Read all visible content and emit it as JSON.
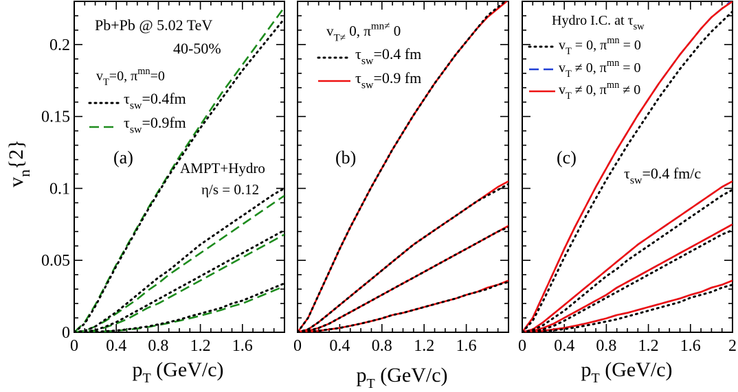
{
  "figure": {
    "ylabel_main": "v",
    "ylabel_sub": "n",
    "ylabel_tail": "{2}",
    "xlabel_main": "p",
    "xlabel_sub": "T",
    "xlabel_tail": " (GeV/c)"
  },
  "colors": {
    "black_dotted": "#000000",
    "green_dashed": "#1e8c1e",
    "blue_dashed": "#1f3fd6",
    "red_solid": "#ee1111"
  },
  "chart_data": [
    {
      "type": "line",
      "panel": "(a)",
      "xlim": [
        0,
        2
      ],
      "ylim": [
        0,
        0.23
      ],
      "x_ticks": [
        "0",
        "0.4",
        "0.8",
        "1.2",
        "1.6"
      ],
      "y_ticks": [
        "0",
        "0.05",
        "0.1",
        "0.15",
        "0.2"
      ],
      "annotations": {
        "system": "Pb+Pb @ 5.02 TeV",
        "centrality": "40-50%",
        "condition": "v_T=0, π^mn=0",
        "model": "AMPT+Hydro",
        "viscosity": "η/s = 0.12"
      },
      "legend": [
        {
          "label": "τ_sw=0.4fm",
          "style": "dotted",
          "color": "#000000"
        },
        {
          "label": "τ_sw=0.9fm",
          "style": "dashed",
          "color": "#1e8c1e"
        }
      ],
      "x": [
        0,
        0.1,
        0.2,
        0.3,
        0.4,
        0.5,
        0.6,
        0.7,
        0.8,
        0.9,
        1.0,
        1.1,
        1.2,
        1.3,
        1.4,
        1.5,
        1.6,
        1.7,
        1.8,
        1.9,
        2.0
      ],
      "series": [
        {
          "name": "τ_sw=0.4fm",
          "harmonic": "v2",
          "style": "dotted",
          "values": [
            0,
            0.006,
            0.018,
            0.032,
            0.046,
            0.059,
            0.072,
            0.085,
            0.097,
            0.109,
            0.12,
            0.131,
            0.142,
            0.152,
            0.162,
            0.172,
            0.182,
            0.191,
            0.2,
            0.209,
            0.218
          ]
        },
        {
          "name": "τ_sw=0.9fm",
          "harmonic": "v2",
          "style": "dashed",
          "values": [
            0,
            0.007,
            0.019,
            0.033,
            0.047,
            0.06,
            0.073,
            0.086,
            0.098,
            0.11,
            0.122,
            0.133,
            0.144,
            0.155,
            0.166,
            0.176,
            0.186,
            0.196,
            0.206,
            0.216,
            0.226
          ]
        },
        {
          "name": "τ_sw=0.4fm",
          "harmonic": "v3",
          "style": "dotted",
          "values": [
            0,
            0.001,
            0.004,
            0.009,
            0.014,
            0.02,
            0.026,
            0.032,
            0.038,
            0.043,
            0.049,
            0.055,
            0.061,
            0.066,
            0.071,
            0.076,
            0.081,
            0.086,
            0.091,
            0.096,
            0.1
          ]
        },
        {
          "name": "τ_sw=0.9fm",
          "harmonic": "v3",
          "style": "dashed",
          "values": [
            0,
            0.001,
            0.004,
            0.008,
            0.013,
            0.018,
            0.023,
            0.029,
            0.034,
            0.04,
            0.045,
            0.05,
            0.055,
            0.06,
            0.065,
            0.07,
            0.075,
            0.08,
            0.085,
            0.09,
            0.095
          ]
        },
        {
          "name": "τ_sw=0.4fm",
          "harmonic": "v4",
          "style": "dotted",
          "values": [
            0,
            0.0003,
            0.0015,
            0.004,
            0.007,
            0.011,
            0.015,
            0.019,
            0.023,
            0.027,
            0.031,
            0.035,
            0.039,
            0.043,
            0.047,
            0.051,
            0.055,
            0.059,
            0.063,
            0.067,
            0.071
          ]
        },
        {
          "name": "τ_sw=0.9fm",
          "harmonic": "v4",
          "style": "dashed",
          "values": [
            0,
            0.0003,
            0.0013,
            0.0035,
            0.006,
            0.009,
            0.013,
            0.017,
            0.02,
            0.024,
            0.028,
            0.032,
            0.036,
            0.04,
            0.044,
            0.048,
            0.052,
            0.056,
            0.06,
            0.064,
            0.068
          ]
        },
        {
          "name": "τ_sw=0.4fm",
          "harmonic": "v5",
          "style": "dotted",
          "values": [
            0,
            0.0001,
            0.0003,
            0.0007,
            0.0012,
            0.002,
            0.003,
            0.004,
            0.0055,
            0.007,
            0.0088,
            0.011,
            0.013,
            0.015,
            0.017,
            0.02,
            0.022,
            0.025,
            0.028,
            0.031,
            0.034
          ]
        },
        {
          "name": "τ_sw=0.9fm",
          "harmonic": "v5",
          "style": "dashed",
          "values": [
            0,
            0.0001,
            0.0003,
            0.0006,
            0.001,
            0.0017,
            0.0026,
            0.0036,
            0.005,
            0.0064,
            0.008,
            0.0097,
            0.0115,
            0.0135,
            0.0155,
            0.018,
            0.02,
            0.023,
            0.026,
            0.029,
            0.032
          ]
        }
      ]
    },
    {
      "type": "line",
      "panel": "(b)",
      "xlim": [
        0,
        2
      ],
      "ylim": [
        0,
        0.23
      ],
      "x_ticks": [
        "0",
        "0.4",
        "0.8",
        "1.2",
        "1.6"
      ],
      "annotations": {
        "condition": "v_T≠ 0, π^mn≠ 0"
      },
      "legend": [
        {
          "label": "τ_sw=0.4 fm",
          "style": "dotted",
          "color": "#000000"
        },
        {
          "label": "τ_sw=0.9 fm",
          "style": "solid",
          "color": "#ee1111"
        }
      ],
      "x": [
        0,
        0.1,
        0.2,
        0.3,
        0.4,
        0.5,
        0.6,
        0.7,
        0.8,
        0.9,
        1.0,
        1.1,
        1.2,
        1.3,
        1.4,
        1.5,
        1.6,
        1.7,
        1.8,
        1.9,
        2.0
      ],
      "series": [
        {
          "name": "τ_sw=0.4 fm",
          "harmonic": "v2",
          "style": "dotted",
          "values": [
            0,
            0.01,
            0.026,
            0.042,
            0.058,
            0.073,
            0.087,
            0.101,
            0.114,
            0.127,
            0.139,
            0.151,
            0.162,
            0.173,
            0.183,
            0.193,
            0.202,
            0.211,
            0.22,
            0.226,
            0.232
          ]
        },
        {
          "name": "τ_sw=0.9 fm",
          "harmonic": "v2",
          "style": "solid",
          "values": [
            0,
            0.01,
            0.026,
            0.042,
            0.058,
            0.073,
            0.087,
            0.101,
            0.114,
            0.127,
            0.139,
            0.151,
            0.162,
            0.173,
            0.183,
            0.193,
            0.202,
            0.211,
            0.219,
            0.225,
            0.231
          ]
        },
        {
          "name": "τ_sw=0.4 fm",
          "harmonic": "v3",
          "style": "dotted",
          "values": [
            0,
            0.002,
            0.007,
            0.013,
            0.019,
            0.025,
            0.031,
            0.037,
            0.043,
            0.049,
            0.055,
            0.061,
            0.066,
            0.071,
            0.076,
            0.081,
            0.086,
            0.091,
            0.095,
            0.099,
            0.103
          ]
        },
        {
          "name": "τ_sw=0.9 fm",
          "harmonic": "v3",
          "style": "solid",
          "values": [
            0,
            0.002,
            0.007,
            0.013,
            0.019,
            0.025,
            0.031,
            0.037,
            0.043,
            0.049,
            0.055,
            0.061,
            0.066,
            0.071,
            0.076,
            0.081,
            0.086,
            0.091,
            0.096,
            0.101,
            0.105
          ]
        },
        {
          "name": "τ_sw=0.4 fm",
          "harmonic": "v4",
          "style": "dotted",
          "values": [
            0,
            0.001,
            0.003,
            0.006,
            0.01,
            0.014,
            0.018,
            0.022,
            0.026,
            0.03,
            0.034,
            0.038,
            0.042,
            0.046,
            0.05,
            0.054,
            0.058,
            0.062,
            0.066,
            0.07,
            0.073
          ]
        },
        {
          "name": "τ_sw=0.9 fm",
          "harmonic": "v4",
          "style": "solid",
          "values": [
            0,
            0.001,
            0.003,
            0.006,
            0.01,
            0.014,
            0.018,
            0.022,
            0.026,
            0.03,
            0.034,
            0.038,
            0.042,
            0.046,
            0.05,
            0.054,
            0.058,
            0.062,
            0.066,
            0.07,
            0.074
          ]
        },
        {
          "name": "τ_sw=0.4 fm",
          "harmonic": "v5",
          "style": "dotted",
          "values": [
            0,
            0.0003,
            0.001,
            0.002,
            0.003,
            0.0045,
            0.006,
            0.0078,
            0.0097,
            0.012,
            0.0135,
            0.0155,
            0.0175,
            0.0195,
            0.0215,
            0.0235,
            0.026,
            0.028,
            0.03,
            0.033,
            0.035
          ]
        },
        {
          "name": "τ_sw=0.9 fm",
          "harmonic": "v5",
          "style": "solid",
          "values": [
            0,
            0.0003,
            0.001,
            0.002,
            0.003,
            0.0045,
            0.006,
            0.0078,
            0.0097,
            0.012,
            0.0135,
            0.0155,
            0.0175,
            0.0195,
            0.0215,
            0.0235,
            0.026,
            0.028,
            0.031,
            0.033,
            0.036
          ]
        }
      ]
    },
    {
      "type": "line",
      "panel": "(c)",
      "xlim": [
        0,
        2
      ],
      "ylim": [
        0,
        0.23
      ],
      "x_ticks": [
        "0",
        "0.4",
        "0.8",
        "1.2",
        "1.6",
        "2"
      ],
      "annotations": {
        "title": "Hydro I.C. at τ_sw",
        "tau": "τ_sw=0.4 fm/c"
      },
      "legend": [
        {
          "label": "v_T = 0, π^mn = 0",
          "style": "dotted",
          "color": "#000000"
        },
        {
          "label": "v_T ≠ 0, π^mn = 0",
          "style": "dashed",
          "color": "#1f3fd6"
        },
        {
          "label": "v_T ≠ 0, π^mn ≠ 0",
          "style": "solid",
          "color": "#ee1111"
        }
      ],
      "x": [
        0,
        0.1,
        0.2,
        0.3,
        0.4,
        0.5,
        0.6,
        0.7,
        0.8,
        0.9,
        1.0,
        1.1,
        1.2,
        1.3,
        1.4,
        1.5,
        1.6,
        1.7,
        1.8,
        1.9,
        2.0
      ],
      "series": [
        {
          "name": "v_T = 0, π^mn = 0",
          "harmonic": "v2",
          "style": "dotted",
          "values": [
            0,
            0.008,
            0.022,
            0.037,
            0.052,
            0.066,
            0.08,
            0.093,
            0.106,
            0.118,
            0.13,
            0.141,
            0.152,
            0.163,
            0.173,
            0.183,
            0.192,
            0.201,
            0.209,
            0.216,
            0.223
          ]
        },
        {
          "name": "v_T ≠ 0, π^mn = 0",
          "harmonic": "v2",
          "style": "dashed",
          "values": [
            0,
            0.01,
            0.026,
            0.042,
            0.058,
            0.073,
            0.087,
            0.101,
            0.114,
            0.127,
            0.139,
            0.151,
            0.162,
            0.173,
            0.183,
            0.193,
            0.202,
            0.211,
            0.219,
            0.225,
            0.231
          ]
        },
        {
          "name": "v_T ≠ 0, π^mn ≠ 0",
          "harmonic": "v2",
          "style": "solid",
          "values": [
            0,
            0.01,
            0.026,
            0.042,
            0.058,
            0.073,
            0.087,
            0.101,
            0.114,
            0.127,
            0.139,
            0.151,
            0.162,
            0.173,
            0.183,
            0.193,
            0.202,
            0.211,
            0.219,
            0.225,
            0.23
          ]
        },
        {
          "name": "v_T = 0, π^mn = 0",
          "harmonic": "v3",
          "style": "dotted",
          "values": [
            0,
            0.0015,
            0.005,
            0.01,
            0.015,
            0.021,
            0.027,
            0.033,
            0.039,
            0.044,
            0.05,
            0.055,
            0.06,
            0.065,
            0.07,
            0.075,
            0.08,
            0.085,
            0.09,
            0.095,
            0.099
          ]
        },
        {
          "name": "v_T ≠ 0, π^mn = 0",
          "harmonic": "v3",
          "style": "dashed",
          "values": [
            0,
            0.002,
            0.007,
            0.013,
            0.019,
            0.025,
            0.031,
            0.037,
            0.043,
            0.049,
            0.055,
            0.061,
            0.066,
            0.071,
            0.076,
            0.081,
            0.086,
            0.091,
            0.096,
            0.101,
            0.105
          ]
        },
        {
          "name": "v_T ≠ 0, π^mn ≠ 0",
          "harmonic": "v3",
          "style": "solid",
          "values": [
            0,
            0.002,
            0.007,
            0.013,
            0.019,
            0.025,
            0.031,
            0.037,
            0.043,
            0.049,
            0.055,
            0.061,
            0.066,
            0.071,
            0.076,
            0.081,
            0.086,
            0.091,
            0.096,
            0.101,
            0.105
          ]
        },
        {
          "name": "v_T = 0, π^mn = 0",
          "harmonic": "v4",
          "style": "dotted",
          "values": [
            0,
            0.0005,
            0.002,
            0.0045,
            0.008,
            0.012,
            0.016,
            0.02,
            0.024,
            0.028,
            0.032,
            0.036,
            0.04,
            0.044,
            0.048,
            0.052,
            0.056,
            0.06,
            0.064,
            0.068,
            0.071
          ]
        },
        {
          "name": "v_T ≠ 0, π^mn = 0",
          "harmonic": "v4",
          "style": "dashed",
          "values": [
            0,
            0.001,
            0.003,
            0.006,
            0.01,
            0.014,
            0.018,
            0.022,
            0.026,
            0.031,
            0.035,
            0.039,
            0.043,
            0.047,
            0.051,
            0.055,
            0.059,
            0.063,
            0.067,
            0.071,
            0.075
          ]
        },
        {
          "name": "v_T ≠ 0, π^mn ≠ 0",
          "harmonic": "v4",
          "style": "solid",
          "values": [
            0,
            0.001,
            0.003,
            0.006,
            0.01,
            0.014,
            0.018,
            0.022,
            0.026,
            0.031,
            0.035,
            0.039,
            0.043,
            0.047,
            0.051,
            0.055,
            0.059,
            0.063,
            0.067,
            0.071,
            0.075
          ]
        },
        {
          "name": "v_T = 0, π^mn = 0",
          "harmonic": "v5",
          "style": "dotted",
          "values": [
            0,
            0.0002,
            0.0006,
            0.0013,
            0.0022,
            0.0033,
            0.0046,
            0.006,
            0.0075,
            0.009,
            0.011,
            0.013,
            0.015,
            0.017,
            0.019,
            0.021,
            0.024,
            0.026,
            0.028,
            0.031,
            0.033
          ]
        },
        {
          "name": "v_T ≠ 0, π^mn = 0",
          "harmonic": "v5",
          "style": "dashed",
          "values": [
            0,
            0.0003,
            0.001,
            0.002,
            0.003,
            0.0045,
            0.006,
            0.0078,
            0.0097,
            0.012,
            0.0135,
            0.0155,
            0.0175,
            0.0195,
            0.0215,
            0.0235,
            0.026,
            0.028,
            0.031,
            0.033,
            0.036
          ]
        },
        {
          "name": "v_T ≠ 0, π^mn ≠ 0",
          "harmonic": "v5",
          "style": "solid",
          "values": [
            0,
            0.0003,
            0.001,
            0.002,
            0.003,
            0.0045,
            0.006,
            0.0078,
            0.0097,
            0.012,
            0.0135,
            0.0155,
            0.0175,
            0.0195,
            0.0215,
            0.0235,
            0.026,
            0.028,
            0.031,
            0.033,
            0.036
          ]
        }
      ]
    }
  ]
}
